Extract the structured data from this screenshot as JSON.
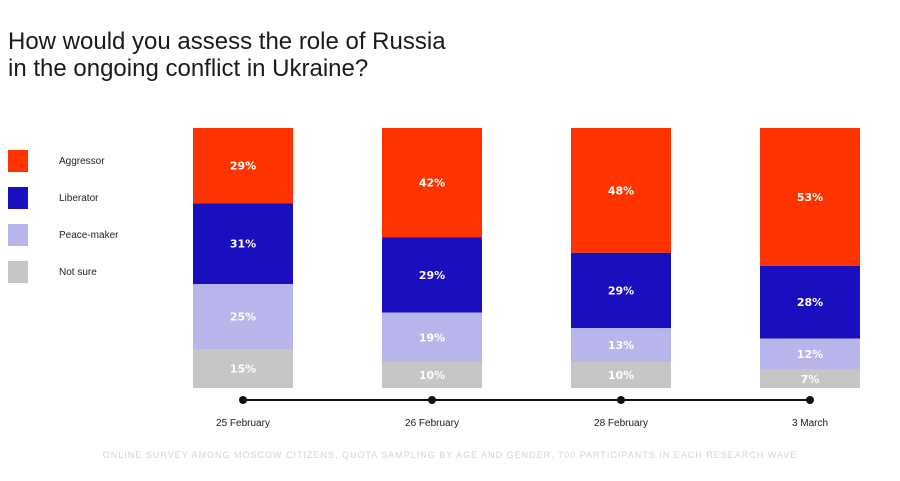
{
  "chart_data": {
    "type": "bar",
    "stacked": true,
    "title": "How would you assess the role of Russia in the ongoing conflict in Ukraine?",
    "title_lines": [
      "How would you assess the role of Russia",
      "in the ongoing conflict in Ukraine?"
    ],
    "categories": [
      "25 February",
      "26 February",
      "28 February",
      "3 March"
    ],
    "series": [
      {
        "name": "Aggressor",
        "color": "#ff3300",
        "values": [
          29,
          42,
          48,
          53
        ]
      },
      {
        "name": "Liberator",
        "color": "#1a0fbf",
        "values": [
          31,
          29,
          29,
          28
        ]
      },
      {
        "name": "Peace-maker",
        "color": "#b7b5ea",
        "values": [
          25,
          19,
          13,
          12
        ]
      },
      {
        "name": "Not sure",
        "color": "#c6c6c6",
        "values": [
          15,
          10,
          10,
          7
        ]
      }
    ],
    "value_suffix": "%",
    "ylim": [
      0,
      100
    ],
    "legend_position": "left",
    "footnote": "ONLINE SURVEY AMONG MOSCOW CITIZENS, QUOTA SAMPLING BY AGE AND GENDER, 700 PARTICIPANTS IN EACH RESEARCH WAVE"
  }
}
